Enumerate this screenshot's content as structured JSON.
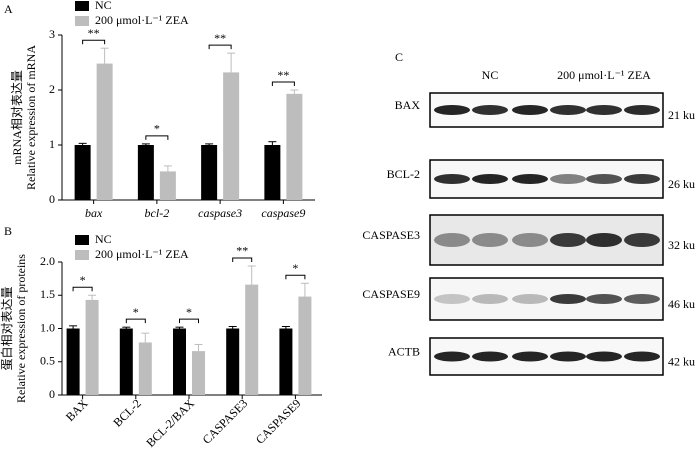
{
  "chart_data": [
    {
      "type": "bar",
      "panel_label": "A",
      "ylabel": [
        "mRNA相对表达量",
        "Relative expression of mRNA"
      ],
      "categories": [
        "bax",
        "bcl-2",
        "caspase3",
        "caspase9"
      ],
      "category_style": "italic",
      "series": [
        {
          "name": "NC",
          "color": "#000000",
          "values": [
            1.0,
            1.0,
            1.0,
            1.0
          ],
          "errors": [
            0.03,
            0.02,
            0.02,
            0.06
          ]
        },
        {
          "name": "200 μmol·L⁻¹ ZEA",
          "color": "#bdbdbd",
          "values": [
            2.48,
            0.52,
            2.32,
            1.93
          ],
          "errors": [
            0.28,
            0.1,
            0.35,
            0.07
          ]
        }
      ],
      "significance": [
        "**",
        "*",
        "**",
        "**"
      ],
      "ylim": [
        0,
        3
      ],
      "yticks": [
        0,
        1,
        2,
        3
      ],
      "legend": "top-left"
    },
    {
      "type": "bar",
      "panel_label": "B",
      "ylabel": [
        "蛋白相对表达量",
        "Relative expression of proteins"
      ],
      "categories": [
        "BAX",
        "BCL-2",
        "BCL-2/BAX",
        "CASPASE3",
        "CASPASE9"
      ],
      "category_style": "rotated",
      "series": [
        {
          "name": "NC",
          "color": "#000000",
          "values": [
            1.0,
            1.0,
            1.0,
            1.0,
            1.0
          ],
          "errors": [
            0.04,
            0.02,
            0.02,
            0.03,
            0.03
          ]
        },
        {
          "name": "200 μmol·L⁻¹ ZEA",
          "color": "#bdbdbd",
          "values": [
            1.43,
            0.79,
            0.66,
            1.66,
            1.48
          ],
          "errors": [
            0.07,
            0.14,
            0.1,
            0.28,
            0.2
          ]
        }
      ],
      "significance": [
        "*",
        "*",
        "*",
        "**",
        "*"
      ],
      "ylim": [
        0,
        2
      ],
      "yticks": [
        0,
        0.5,
        {
          "value": 1,
          "label": "1.0"
        },
        1.5,
        {
          "value": 2,
          "label": "2.0"
        }
      ],
      "legend": "top-left"
    }
  ],
  "blot": {
    "panel_label": "C",
    "groups": [
      "NC",
      "200 μmol·L⁻¹ ZEA"
    ],
    "rows": [
      {
        "label": "BAX",
        "size": "21 ku"
      },
      {
        "label": "BCL-2",
        "size": "26 ku"
      },
      {
        "label": "CASPASE3",
        "size": "32 ku"
      },
      {
        "label": "CASPASE9",
        "size": "46 ku"
      },
      {
        "label": "ACTB",
        "size": "42 ku"
      }
    ]
  }
}
